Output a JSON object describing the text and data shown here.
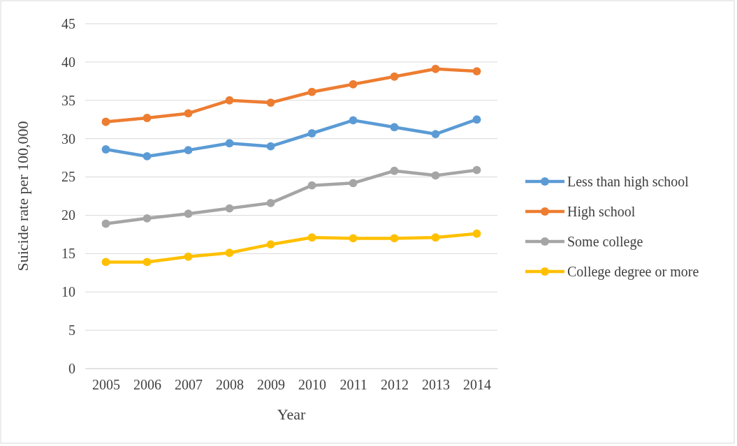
{
  "chart_data": {
    "type": "line",
    "xlabel": "Year",
    "ylabel": "Suicide rate per 100,000",
    "categories": [
      "2005",
      "2006",
      "2007",
      "2008",
      "2009",
      "2010",
      "2011",
      "2012",
      "2013",
      "2014"
    ],
    "series": [
      {
        "name": "Less than high school",
        "color": "#5b9bd5",
        "values": [
          28.6,
          27.7,
          28.5,
          29.4,
          29.0,
          30.7,
          32.4,
          31.5,
          30.6,
          32.5
        ]
      },
      {
        "name": "High school",
        "color": "#ed7d31",
        "values": [
          32.2,
          32.7,
          33.3,
          35.0,
          34.7,
          36.1,
          37.1,
          38.1,
          39.1,
          38.8
        ]
      },
      {
        "name": "Some college",
        "color": "#a5a5a5",
        "values": [
          18.9,
          19.6,
          20.2,
          20.9,
          21.6,
          23.9,
          24.2,
          25.8,
          25.2,
          25.9
        ]
      },
      {
        "name": "College degree or more",
        "color": "#ffc000",
        "values": [
          13.9,
          13.9,
          14.6,
          15.1,
          16.2,
          17.1,
          17.0,
          17.0,
          17.1,
          17.6
        ]
      }
    ],
    "ylim": [
      0,
      45
    ],
    "yticks": [
      0,
      5,
      10,
      15,
      20,
      25,
      30,
      35,
      40,
      45
    ],
    "grid": "y",
    "legend": "right",
    "marker": "circle",
    "line_style": "solid"
  }
}
